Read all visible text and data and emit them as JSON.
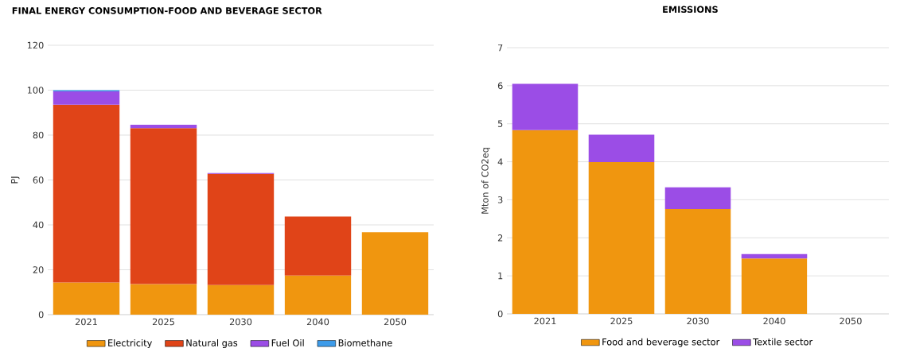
{
  "chart_data": [
    {
      "type": "bar",
      "title": "FINAL ENERGY CONSUMPTION-FOOD AND BEVERAGE SECTOR",
      "ylabel": "PJ",
      "categories": [
        "2021",
        "2025",
        "2030",
        "2040",
        "2050"
      ],
      "stacked": true,
      "series": [
        {
          "name": "Electricity",
          "color": "#f0960f",
          "values": [
            14.3,
            13.6,
            13.2,
            17.4,
            36.7
          ]
        },
        {
          "name": "Natural gas",
          "color": "#e04418",
          "values": [
            79.2,
            69.5,
            49.5,
            26.3,
            0
          ]
        },
        {
          "name": "Fuel Oil",
          "color": "#9b4de6",
          "values": [
            6.0,
            1.5,
            0.4,
            0,
            0
          ]
        },
        {
          "name": "Biomethane",
          "color": "#3d9be9",
          "values": [
            0.5,
            0,
            0,
            0,
            0
          ]
        }
      ],
      "ylim": [
        0,
        120
      ],
      "yticks": [
        0,
        20,
        40,
        60,
        80,
        100,
        120
      ],
      "grid": "y",
      "legend": "bottom"
    },
    {
      "type": "bar",
      "title": "EMISSIONS",
      "ylabel": "Mton of CO2eq",
      "categories": [
        "2021",
        "2025",
        "2030",
        "2040",
        "2050"
      ],
      "stacked": true,
      "series": [
        {
          "name": "Food and beverage sector",
          "color": "#f0960f",
          "values": [
            4.83,
            3.99,
            2.76,
            1.46,
            0
          ]
        },
        {
          "name": "Textile sector",
          "color": "#9b4de6",
          "values": [
            1.22,
            0.72,
            0.57,
            0.11,
            0
          ]
        }
      ],
      "ylim": [
        0,
        7
      ],
      "yticks": [
        0,
        1,
        2,
        3,
        4,
        5,
        6,
        7
      ],
      "grid": "y",
      "legend": "bottom"
    }
  ]
}
